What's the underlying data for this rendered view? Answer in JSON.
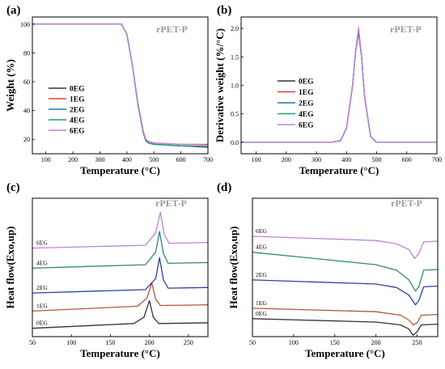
{
  "chart_data": [
    {
      "type": "line",
      "panel_label": "(a)",
      "annotation": "rPET-P",
      "xlabel": "Temperature (°C)",
      "ylabel": "Weight (%)",
      "xlim": [
        50,
        700
      ],
      "ylim": [
        10,
        105
      ],
      "xticks": [
        100,
        200,
        300,
        400,
        500,
        600,
        700
      ],
      "yticks": [
        20,
        40,
        60,
        80,
        100
      ],
      "legend_position": "center-left",
      "x": [
        50,
        300,
        380,
        400,
        420,
        440,
        460,
        470,
        480,
        500,
        600,
        700
      ],
      "series": [
        {
          "name": "0EG",
          "color": "#333333",
          "values": [
            100,
            100,
            100,
            93,
            72,
            45,
            25,
            19,
            17.5,
            16.5,
            15.5,
            14.5
          ]
        },
        {
          "name": "1EG",
          "color": "#e8383d",
          "values": [
            100,
            100,
            100,
            93,
            72,
            46,
            26,
            20,
            18.5,
            17.5,
            16.5,
            16.5
          ]
        },
        {
          "name": "2EG",
          "color": "#2a6fa8",
          "values": [
            100,
            100,
            100,
            93,
            72,
            45,
            25,
            19,
            17.5,
            16.5,
            15.5,
            15
          ]
        },
        {
          "name": "4EG",
          "color": "#1f9d7a",
          "values": [
            100,
            100,
            100,
            93,
            72,
            45,
            25,
            19,
            17.5,
            16.5,
            15.5,
            15
          ]
        },
        {
          "name": "6EG",
          "color": "#c77ee0",
          "values": [
            100,
            100,
            100,
            93,
            72,
            46,
            26,
            20,
            18.5,
            17.5,
            16.5,
            16
          ]
        }
      ]
    },
    {
      "type": "line",
      "panel_label": "(b)",
      "annotation": "rPET-P",
      "xlabel": "Temperature (°C)",
      "ylabel": "Derivative weight (%/°C)",
      "xlim": [
        50,
        700
      ],
      "ylim": [
        -0.2,
        2.2
      ],
      "xticks": [
        100,
        200,
        300,
        400,
        500,
        600,
        700
      ],
      "yticks": [
        0.0,
        0.5,
        1.0,
        1.5,
        2.0
      ],
      "ytick_labels": [
        "0.0",
        "0.5",
        "1.0",
        "1.5",
        "2.0"
      ],
      "legend_position": "center-left",
      "x": [
        50,
        350,
        380,
        400,
        420,
        430,
        440,
        450,
        460,
        480,
        500,
        700
      ],
      "series": [
        {
          "name": "0EG",
          "color": "#333333",
          "values": [
            0,
            0,
            0.03,
            0.25,
            1.0,
            1.6,
            1.93,
            1.5,
            0.8,
            0.1,
            0,
            0
          ]
        },
        {
          "name": "1EG",
          "color": "#e8383d",
          "values": [
            0,
            0,
            0.03,
            0.25,
            1.0,
            1.6,
            1.97,
            1.5,
            0.8,
            0.1,
            0,
            0
          ]
        },
        {
          "name": "2EG",
          "color": "#2a6fa8",
          "values": [
            0,
            0,
            0.03,
            0.25,
            1.0,
            1.6,
            1.95,
            1.5,
            0.8,
            0.1,
            0,
            0
          ]
        },
        {
          "name": "4EG",
          "color": "#1f9d7a",
          "values": [
            0,
            0,
            0.03,
            0.25,
            1.0,
            1.6,
            1.99,
            1.5,
            0.8,
            0.1,
            0,
            0
          ]
        },
        {
          "name": "6EG",
          "color": "#c77ee0",
          "values": [
            0,
            0,
            0.03,
            0.25,
            1.0,
            1.6,
            2.02,
            1.5,
            0.8,
            0.1,
            0,
            0
          ]
        }
      ]
    },
    {
      "type": "line",
      "panel_label": "(c)",
      "annotation": "rPET-P",
      "xlabel": "Temperature (°C)",
      "ylabel": "Heat flow(Exo,up)",
      "xlim": [
        50,
        275
      ],
      "ylim": [
        0,
        10
      ],
      "xticks": [
        50,
        100,
        150,
        200,
        250
      ],
      "yticks": [],
      "series": [
        {
          "name": "0EG",
          "color": "#333333",
          "points": [
            [
              50,
              0.6
            ],
            [
              180,
              0.95
            ],
            [
              193,
              1.4
            ],
            [
              200,
              2.6
            ],
            [
              205,
              1.4
            ],
            [
              212,
              0.95
            ],
            [
              275,
              1.0
            ]
          ]
        },
        {
          "name": "1EG",
          "color": "#b5563a",
          "points": [
            [
              50,
              1.85
            ],
            [
              185,
              2.2
            ],
            [
              197,
              2.8
            ],
            [
              203,
              3.9
            ],
            [
              208,
              2.7
            ],
            [
              214,
              2.25
            ],
            [
              275,
              2.3
            ]
          ]
        },
        {
          "name": "2EG",
          "color": "#2d3fa8",
          "points": [
            [
              50,
              3.15
            ],
            [
              195,
              3.4
            ],
            [
              208,
              4.2
            ],
            [
              213,
              5.7
            ],
            [
              218,
              4.1
            ],
            [
              224,
              3.5
            ],
            [
              275,
              3.55
            ]
          ]
        },
        {
          "name": "4EG",
          "color": "#2e8a6a",
          "points": [
            [
              50,
              4.95
            ],
            [
              195,
              5.2
            ],
            [
              208,
              6.1
            ],
            [
              213,
              7.6
            ],
            [
              218,
              6.0
            ],
            [
              224,
              5.3
            ],
            [
              275,
              5.35
            ]
          ]
        },
        {
          "name": "6EG",
          "color": "#b985dc",
          "points": [
            [
              50,
              6.4
            ],
            [
              195,
              6.6
            ],
            [
              208,
              7.5
            ],
            [
              214,
              9.0
            ],
            [
              219,
              7.4
            ],
            [
              225,
              6.75
            ],
            [
              275,
              6.8
            ]
          ]
        }
      ]
    },
    {
      "type": "line",
      "panel_label": "(d)",
      "annotation": "rPET-P",
      "xlabel": "Temperature (°C)",
      "ylabel": "Heat flow(Exo,up)",
      "xlim": [
        50,
        275
      ],
      "ylim": [
        0,
        10
      ],
      "xticks": [
        50,
        100,
        150,
        200,
        250
      ],
      "yticks": [],
      "series": [
        {
          "name": "0EG",
          "color": "#333333",
          "points": [
            [
              50,
              1.3
            ],
            [
              200,
              1.05
            ],
            [
              230,
              0.85
            ],
            [
              240,
              0.55
            ],
            [
              245,
              0.1
            ],
            [
              250,
              0.35
            ],
            [
              255,
              0.85
            ],
            [
              275,
              0.9
            ]
          ]
        },
        {
          "name": "1EG",
          "color": "#b5563a",
          "points": [
            [
              50,
              2.05
            ],
            [
              200,
              1.8
            ],
            [
              230,
              1.55
            ],
            [
              240,
              1.2
            ],
            [
              245,
              0.85
            ],
            [
              250,
              1.0
            ],
            [
              255,
              1.55
            ],
            [
              275,
              1.6
            ]
          ]
        },
        {
          "name": "2EG",
          "color": "#2d3fa8",
          "points": [
            [
              50,
              4.1
            ],
            [
              200,
              3.8
            ],
            [
              225,
              3.55
            ],
            [
              240,
              3.0
            ],
            [
              248,
              2.3
            ],
            [
              252,
              2.6
            ],
            [
              258,
              3.6
            ],
            [
              275,
              3.65
            ]
          ]
        },
        {
          "name": "4EG",
          "color": "#2e8a6a",
          "points": [
            [
              50,
              6.1
            ],
            [
              200,
              5.2
            ],
            [
              225,
              4.8
            ],
            [
              240,
              4.1
            ],
            [
              248,
              3.3
            ],
            [
              252,
              3.6
            ],
            [
              258,
              4.8
            ],
            [
              275,
              4.85
            ]
          ]
        },
        {
          "name": "6EG",
          "color": "#b985dc",
          "points": [
            [
              50,
              7.25
            ],
            [
              200,
              6.95
            ],
            [
              225,
              6.7
            ],
            [
              240,
              6.3
            ],
            [
              247,
              5.65
            ],
            [
              252,
              6.0
            ],
            [
              258,
              6.85
            ],
            [
              275,
              6.9
            ]
          ]
        }
      ]
    }
  ]
}
